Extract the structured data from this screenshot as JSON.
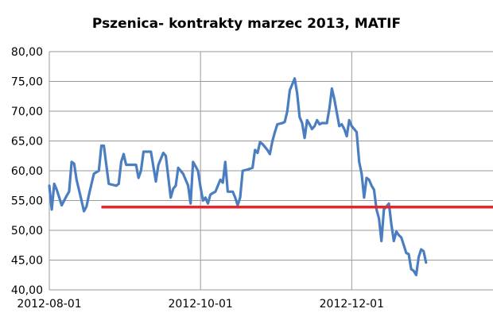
{
  "chart_data": {
    "type": "line",
    "title": "Pszenica- kontrakty marzec 2013, MATIF",
    "xlabel": "",
    "ylabel": "",
    "ylim": [
      40,
      80
    ],
    "y_ticks": [
      "40,00",
      "45,00",
      "50,00",
      "55,00",
      "60,00",
      "65,00",
      "70,00",
      "75,00",
      "80,00"
    ],
    "x_ticks": [
      {
        "label": "2012-08-01",
        "x": "2012-08-01"
      },
      {
        "label": "2012-10-01",
        "x": "2012-10-01"
      },
      {
        "label": "2012-12-01",
        "x": "2012-12-01"
      }
    ],
    "xlim": [
      "2012-08-01",
      "2013-01-27"
    ],
    "grid": true,
    "series": [
      {
        "color": "#4a7ec0",
        "points": [
          [
            "2012-08-01",
            57.5
          ],
          [
            "2012-08-02",
            53.5
          ],
          [
            "2012-08-03",
            57.8
          ],
          [
            "2012-08-04",
            56.8
          ],
          [
            "2012-08-06",
            54.2
          ],
          [
            "2012-08-08",
            55.8
          ],
          [
            "2012-08-09",
            56.5
          ],
          [
            "2012-08-10",
            61.5
          ],
          [
            "2012-08-11",
            61.2
          ],
          [
            "2012-08-12",
            58.5
          ],
          [
            "2012-08-14",
            55.0
          ],
          [
            "2012-08-15",
            53.2
          ],
          [
            "2012-08-16",
            54.0
          ],
          [
            "2012-08-17",
            56.0
          ],
          [
            "2012-08-19",
            59.5
          ],
          [
            "2012-08-21",
            60.0
          ],
          [
            "2012-08-22",
            64.2
          ],
          [
            "2012-08-23",
            64.2
          ],
          [
            "2012-08-25",
            57.8
          ],
          [
            "2012-08-28",
            57.5
          ],
          [
            "2012-08-29",
            57.8
          ],
          [
            "2012-08-30",
            61.5
          ],
          [
            "2012-08-31",
            62.8
          ],
          [
            "2012-09-01",
            61.0
          ],
          [
            "2012-09-05",
            61.0
          ],
          [
            "2012-09-06",
            58.8
          ],
          [
            "2012-09-07",
            60.0
          ],
          [
            "2012-09-08",
            63.2
          ],
          [
            "2012-09-11",
            63.2
          ],
          [
            "2012-09-13",
            58.2
          ],
          [
            "2012-09-14",
            61.0
          ],
          [
            "2012-09-16",
            63.0
          ],
          [
            "2012-09-17",
            62.5
          ],
          [
            "2012-09-19",
            55.5
          ],
          [
            "2012-09-20",
            57.0
          ],
          [
            "2012-09-21",
            57.5
          ],
          [
            "2012-09-22",
            60.5
          ],
          [
            "2012-09-24",
            59.5
          ],
          [
            "2012-09-26",
            57.5
          ],
          [
            "2012-09-27",
            54.5
          ],
          [
            "2012-09-28",
            61.5
          ],
          [
            "2012-09-30",
            60.0
          ],
          [
            "2012-10-01",
            57.2
          ],
          [
            "2012-10-02",
            55.0
          ],
          [
            "2012-10-03",
            55.5
          ],
          [
            "2012-10-04",
            54.5
          ],
          [
            "2012-10-05",
            56.0
          ],
          [
            "2012-10-07",
            56.5
          ],
          [
            "2012-10-09",
            58.5
          ],
          [
            "2012-10-10",
            58.0
          ],
          [
            "2012-10-11",
            61.5
          ],
          [
            "2012-10-12",
            56.5
          ],
          [
            "2012-10-14",
            56.5
          ],
          [
            "2012-10-15",
            55.5
          ],
          [
            "2012-10-16",
            54.2
          ],
          [
            "2012-10-17",
            55.5
          ],
          [
            "2012-10-18",
            60.0
          ],
          [
            "2012-10-20",
            60.2
          ],
          [
            "2012-10-22",
            60.5
          ],
          [
            "2012-10-23",
            63.5
          ],
          [
            "2012-10-24",
            63.0
          ],
          [
            "2012-10-25",
            64.8
          ],
          [
            "2012-10-26",
            64.5
          ],
          [
            "2012-10-28",
            63.5
          ],
          [
            "2012-10-29",
            62.8
          ],
          [
            "2012-10-30",
            65.0
          ],
          [
            "2012-10-31",
            66.5
          ],
          [
            "2012-11-01",
            67.8
          ],
          [
            "2012-11-03",
            68.0
          ],
          [
            "2012-11-04",
            68.2
          ],
          [
            "2012-11-05",
            70.0
          ],
          [
            "2012-11-06",
            73.5
          ],
          [
            "2012-11-08",
            75.5
          ],
          [
            "2012-11-09",
            73.0
          ],
          [
            "2012-11-10",
            69.0
          ],
          [
            "2012-11-11",
            68.0
          ],
          [
            "2012-11-12",
            65.5
          ],
          [
            "2012-11-13",
            68.5
          ],
          [
            "2012-11-14",
            67.8
          ],
          [
            "2012-11-15",
            67.0
          ],
          [
            "2012-11-16",
            67.5
          ],
          [
            "2012-11-17",
            68.5
          ],
          [
            "2012-11-18",
            67.8
          ],
          [
            "2012-11-19",
            68.0
          ],
          [
            "2012-11-21",
            68.0
          ],
          [
            "2012-11-22",
            70.5
          ],
          [
            "2012-11-23",
            73.8
          ],
          [
            "2012-11-24",
            72.0
          ],
          [
            "2012-11-26",
            67.5
          ],
          [
            "2012-11-27",
            67.8
          ],
          [
            "2012-11-28",
            67.0
          ],
          [
            "2012-11-29",
            65.8
          ],
          [
            "2012-11-30",
            68.5
          ],
          [
            "2012-12-01",
            67.5
          ],
          [
            "2012-12-02",
            67.0
          ],
          [
            "2012-12-03",
            66.5
          ],
          [
            "2012-12-04",
            61.5
          ],
          [
            "2012-12-05",
            59.5
          ],
          [
            "2012-12-06",
            55.5
          ],
          [
            "2012-12-07",
            58.8
          ],
          [
            "2012-12-08",
            58.5
          ],
          [
            "2012-12-09",
            57.5
          ],
          [
            "2012-12-10",
            56.8
          ],
          [
            "2012-12-11",
            53.5
          ],
          [
            "2012-12-12",
            52.0
          ],
          [
            "2012-12-13",
            48.2
          ],
          [
            "2012-12-14",
            53.5
          ],
          [
            "2012-12-15",
            54.0
          ],
          [
            "2012-12-16",
            54.5
          ],
          [
            "2012-12-17",
            51.0
          ],
          [
            "2012-12-18",
            48.2
          ],
          [
            "2012-12-19",
            49.8
          ],
          [
            "2012-12-20",
            49.2
          ],
          [
            "2012-12-21",
            48.8
          ],
          [
            "2012-12-23",
            46.2
          ],
          [
            "2012-12-24",
            46.0
          ],
          [
            "2012-12-25",
            43.5
          ],
          [
            "2012-12-26",
            43.2
          ],
          [
            "2012-12-27",
            42.5
          ],
          [
            "2012-12-28",
            45.5
          ],
          [
            "2012-12-29",
            46.8
          ],
          [
            "2012-12-30",
            46.5
          ],
          [
            "2012-12-31",
            44.6
          ]
        ]
      }
    ],
    "reference_line": {
      "y": 53.9,
      "from": "2012-08-22",
      "to": "2013-01-27",
      "color": "#e8242c"
    }
  }
}
